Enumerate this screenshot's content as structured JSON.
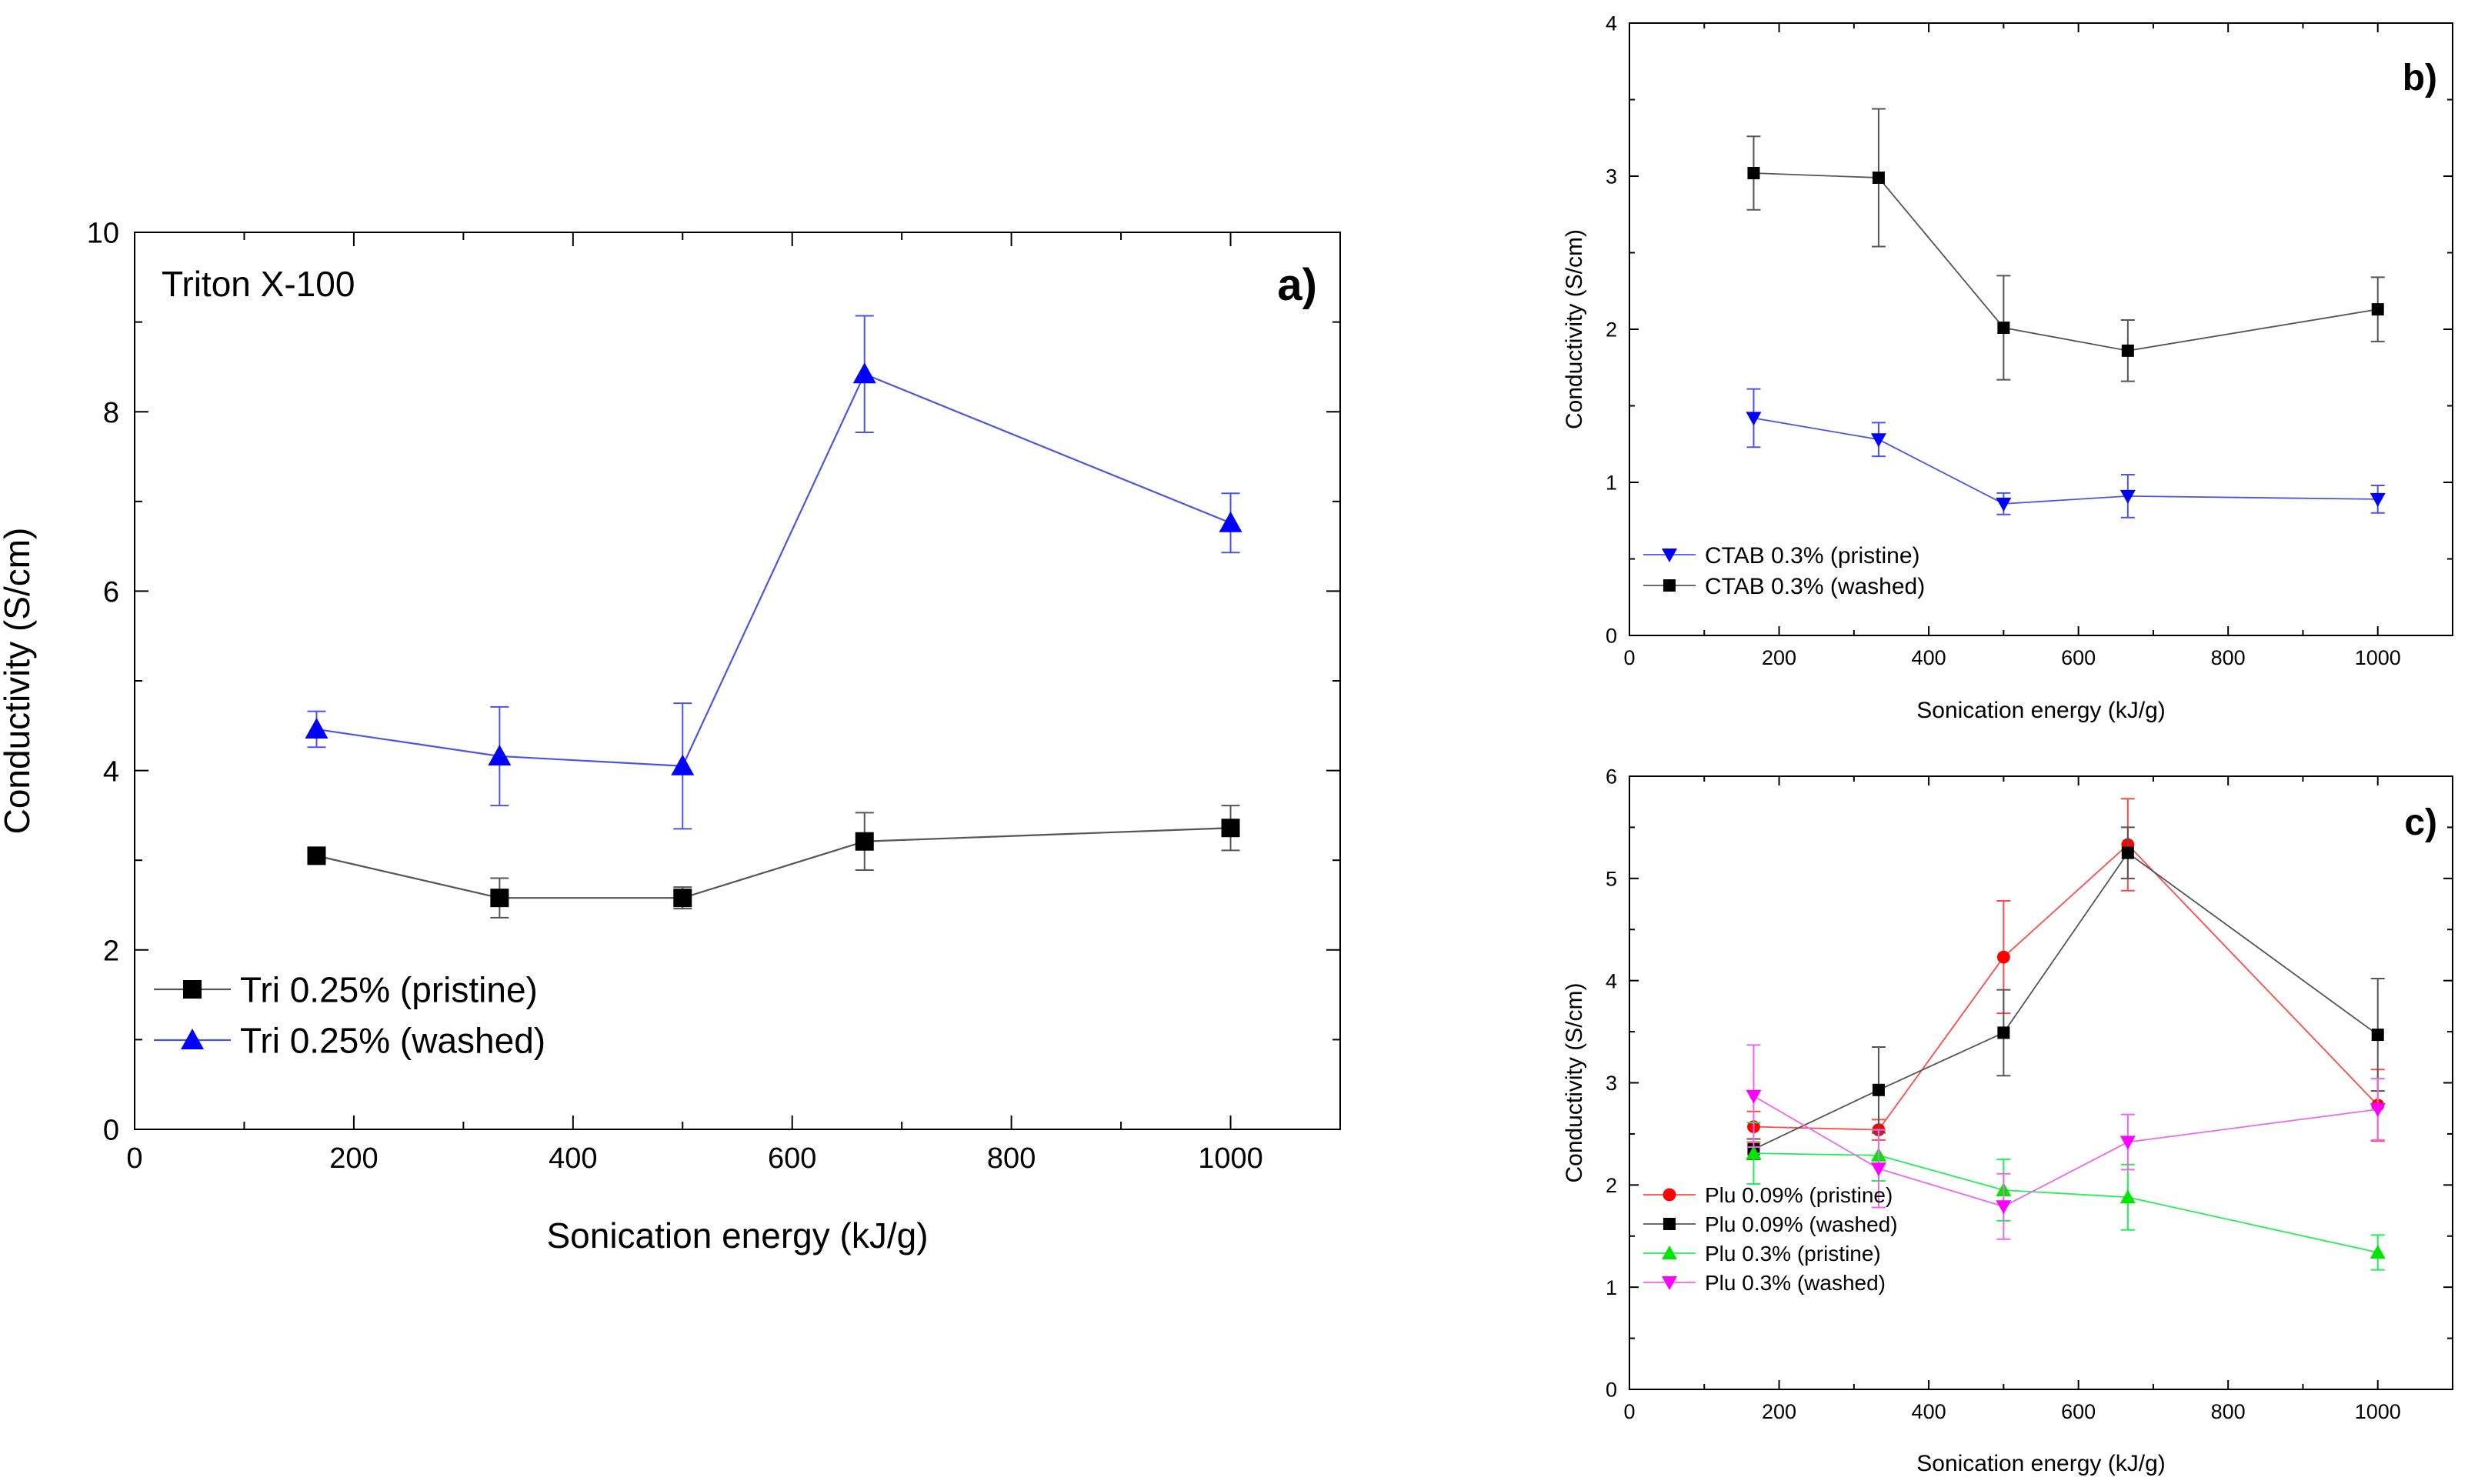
{
  "chart_data": [
    {
      "panel": "a)",
      "type": "line",
      "annotation": "Triton X-100",
      "xlabel": "Sonication energy (kJ/g)",
      "ylabel": "Conductivity (S/cm)",
      "xlim": [
        0,
        1100
      ],
      "ylim": [
        0,
        10
      ],
      "xticks": [
        0,
        200,
        400,
        600,
        800,
        1000
      ],
      "yticks": [
        0,
        2,
        4,
        6,
        8,
        10
      ],
      "legend_position": "bottom-left",
      "series": [
        {
          "name": "Tri 0.25% (pristine)",
          "color": "#000000",
          "line": "#555555",
          "marker": "square",
          "x": [
            166,
            333,
            500,
            666,
            1000
          ],
          "y": [
            3.05,
            2.58,
            2.58,
            3.21,
            3.36
          ],
          "err": [
            0.0,
            0.22,
            0.12,
            0.32,
            0.25
          ]
        },
        {
          "name": "Tri 0.25% (washed)",
          "color": "#0000ff",
          "line": "#4a55e8",
          "marker": "triangle-up",
          "x": [
            166,
            333,
            500,
            666,
            1000
          ],
          "y": [
            4.46,
            4.16,
            4.05,
            8.42,
            6.76
          ],
          "err": [
            0.2,
            0.55,
            0.7,
            0.65,
            0.33
          ]
        }
      ]
    },
    {
      "panel": "b)",
      "type": "line",
      "xlabel": "Sonication energy (kJ/g)",
      "ylabel": "Conductivity (S/cm)",
      "xlim": [
        0,
        1100
      ],
      "ylim": [
        0,
        4
      ],
      "xticks": [
        0,
        200,
        400,
        600,
        800,
        1000
      ],
      "yticks": [
        0,
        1,
        2,
        3,
        4
      ],
      "legend_position": "bottom-left",
      "series": [
        {
          "name": "CTAB 0.3% (pristine)",
          "color": "#0000ff",
          "line": "#4a55e8",
          "marker": "triangle-down",
          "x": [
            166,
            333,
            500,
            666,
            1000
          ],
          "y": [
            1.42,
            1.28,
            0.86,
            0.91,
            0.89
          ],
          "err": [
            0.19,
            0.11,
            0.07,
            0.14,
            0.09
          ]
        },
        {
          "name": "CTAB 0.3% (washed)",
          "color": "#000000",
          "line": "#555555",
          "marker": "square",
          "x": [
            166,
            333,
            500,
            666,
            1000
          ],
          "y": [
            3.02,
            2.99,
            2.01,
            1.86,
            2.13
          ],
          "err": [
            0.24,
            0.45,
            0.34,
            0.2,
            0.21
          ]
        }
      ]
    },
    {
      "panel": "c)",
      "type": "line",
      "xlabel": "Sonication energy (kJ/g)",
      "ylabel": "Conductivity (S/cm)",
      "xlim": [
        0,
        1100
      ],
      "ylim": [
        0,
        6
      ],
      "xticks": [
        0,
        200,
        400,
        600,
        800,
        1000
      ],
      "yticks": [
        0,
        1,
        2,
        3,
        4,
        5,
        6
      ],
      "legend_position": "bottom-left",
      "series": [
        {
          "name": "Plu 0.09% (pristine)",
          "color": "#ff0000",
          "line": "#ff4a4a",
          "marker": "circle",
          "x": [
            166,
            333,
            500,
            666,
            1000
          ],
          "y": [
            2.57,
            2.54,
            4.23,
            5.33,
            2.78
          ],
          "err": [
            0.15,
            0.1,
            0.55,
            0.45,
            0.35
          ]
        },
        {
          "name": "Plu 0.09% (washed)",
          "color": "#000000",
          "line": "#555555",
          "marker": "square",
          "x": [
            166,
            333,
            500,
            666,
            1000
          ],
          "y": [
            2.35,
            2.93,
            3.49,
            5.25,
            3.47
          ],
          "err": [
            0.1,
            0.42,
            0.42,
            0.25,
            0.55
          ]
        },
        {
          "name": "Plu 0.3% (pristine)",
          "color": "#00e600",
          "line": "#22ee55",
          "marker": "triangle-up",
          "x": [
            166,
            333,
            500,
            666,
            1000
          ],
          "y": [
            2.31,
            2.29,
            1.95,
            1.88,
            1.34
          ],
          "err": [
            0.3,
            0.25,
            0.3,
            0.32,
            0.17
          ]
        },
        {
          "name": "Plu 0.3% (washed)",
          "color": "#ff00ff",
          "line": "#ee66ee",
          "marker": "triangle-down",
          "x": [
            166,
            333,
            500,
            666,
            1000
          ],
          "y": [
            2.87,
            2.16,
            1.79,
            2.42,
            2.74
          ],
          "err": [
            0.5,
            0.38,
            0.32,
            0.27,
            0.3
          ]
        }
      ]
    }
  ]
}
